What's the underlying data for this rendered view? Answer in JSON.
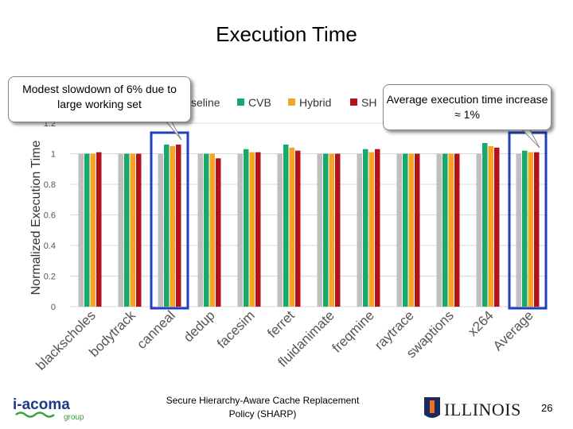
{
  "slide": {
    "title": "Execution Time",
    "footer": "Secure Hierarchy-Aware Cache Replacement Policy (SHARP)",
    "page_number": "26",
    "logo_left": "i-acoma group",
    "logo_right": "ILLINOIS"
  },
  "callouts": {
    "left": "Modest slowdown of 6% due to large working set",
    "right": "Average execution time increase ≈ 1%"
  },
  "colors": {
    "baseline": "#bfbfbf",
    "cvb": "#17a86a",
    "hybrid": "#f4a427",
    "sharp": "#b3121c",
    "highlight": "#1f3fbf",
    "grid": "#d9d9d9"
  },
  "chart_data": {
    "type": "bar",
    "ylabel": "Normalized Execution Time",
    "ylim": [
      0,
      1.2
    ],
    "yticks": [
      "0",
      "0.2",
      "0.4",
      "0.6",
      "0.8",
      "1",
      "1.2"
    ],
    "grid": true,
    "legend_position": "top",
    "categories": [
      "blackscholes",
      "bodytrack",
      "canneal",
      "dedup",
      "facesim",
      "ferret",
      "fluidanimate",
      "freqmine",
      "raytrace",
      "swaptions",
      "x264",
      "Average"
    ],
    "series": [
      {
        "name": "Baseline",
        "legend_label": "seline",
        "values": [
          1,
          1,
          1,
          1,
          1,
          1,
          1,
          1,
          1,
          1,
          1,
          1
        ]
      },
      {
        "name": "CVB",
        "legend_label": "CVB",
        "values": [
          1.0,
          1.0,
          1.06,
          1.0,
          1.03,
          1.06,
          1.0,
          1.03,
          1.0,
          1.0,
          1.07,
          1.02
        ]
      },
      {
        "name": "Hybrid",
        "legend_label": "Hybrid",
        "values": [
          1.0,
          1.0,
          1.05,
          1.0,
          1.01,
          1.04,
          1.0,
          1.01,
          1.0,
          1.0,
          1.05,
          1.01
        ]
      },
      {
        "name": "SHARP",
        "legend_label": "SH",
        "values": [
          1.01,
          1.0,
          1.06,
          0.97,
          1.01,
          1.02,
          1.0,
          1.03,
          1.0,
          1.0,
          1.04,
          1.01
        ]
      }
    ],
    "highlighted": [
      "canneal",
      "Average"
    ]
  }
}
